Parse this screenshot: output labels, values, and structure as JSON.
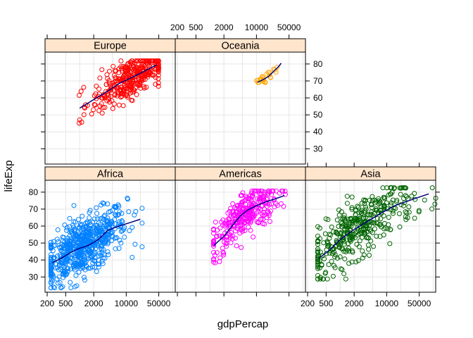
{
  "chart_data": {
    "type": "scatter",
    "title": "",
    "xlabel": "gdpPercap",
    "ylabel": "lifeExp",
    "x_scale": "log",
    "xlim": [
      180,
      113000
    ],
    "ylim": [
      21,
      87
    ],
    "x_ticks": [
      200,
      500,
      2000,
      10000,
      50000
    ],
    "x_tick_labels": [
      "200",
      "500",
      "2000",
      "10000",
      "50000"
    ],
    "y_ticks": [
      30,
      40,
      50,
      60,
      70,
      80
    ],
    "y_tick_labels": [
      "30",
      "40",
      "50",
      "60",
      "70",
      "80"
    ],
    "grid": true,
    "smoother": "loess",
    "panels": [
      {
        "name": "Africa",
        "color": "#0080ff",
        "x_range": [
          241,
          21951
        ],
        "y_range": [
          23.6,
          76.4
        ],
        "center": {
          "x": 1200,
          "y": 48
        },
        "count": 624,
        "trend": [
          [
            260,
            38.5
          ],
          [
            400,
            41
          ],
          [
            600,
            44
          ],
          [
            900,
            46.5
          ],
          [
            1500,
            48.5
          ],
          [
            2500,
            52
          ],
          [
            4000,
            57.5
          ],
          [
            7000,
            60
          ],
          [
            12000,
            62
          ],
          [
            20000,
            64
          ]
        ]
      },
      {
        "name": "Americas",
        "color": "#ff00ff",
        "x_range": [
          1202,
          42952
        ],
        "y_range": [
          37.6,
          80.7
        ],
        "center": {
          "x": 5500,
          "y": 64
        },
        "count": 300,
        "trend": [
          [
            1200,
            48.5
          ],
          [
            2000,
            54
          ],
          [
            3000,
            60
          ],
          [
            4500,
            66
          ],
          [
            6500,
            69.5
          ],
          [
            10000,
            72
          ],
          [
            15000,
            74
          ],
          [
            25000,
            76
          ],
          [
            40000,
            78
          ]
        ]
      },
      {
        "name": "Asia",
        "color": "#006400",
        "x_range": [
          331,
          113523
        ],
        "y_range": [
          28.8,
          82.6
        ],
        "center": {
          "x": 2500,
          "y": 60
        },
        "count": 396,
        "trend": [
          [
            350,
            41
          ],
          [
            600,
            46
          ],
          [
            1000,
            52
          ],
          [
            2000,
            58
          ],
          [
            4000,
            63
          ],
          [
            8000,
            68
          ],
          [
            15000,
            72
          ],
          [
            30000,
            75
          ],
          [
            80000,
            79
          ]
        ]
      },
      {
        "name": "Europe",
        "color": "#ff0000",
        "x_range": [
          974,
          49357
        ],
        "y_range": [
          43.6,
          81.8
        ],
        "center": {
          "x": 12000,
          "y": 71
        },
        "count": 360,
        "trend": [
          [
            1000,
            54
          ],
          [
            2000,
            59
          ],
          [
            4000,
            64
          ],
          [
            7000,
            68.5
          ],
          [
            12000,
            71.5
          ],
          [
            20000,
            74.5
          ],
          [
            30000,
            77
          ],
          [
            45000,
            79.5
          ]
        ]
      },
      {
        "name": "Oceania",
        "color": "#ffa500",
        "x_range": [
          10040,
          34435
        ],
        "y_range": [
          69.1,
          81.2
        ],
        "center": {
          "x": 18000,
          "y": 74
        },
        "count": 24,
        "trend": [
          [
            10500,
            69.2
          ],
          [
            14000,
            70.8
          ],
          [
            18000,
            72.5
          ],
          [
            24000,
            76
          ],
          [
            30000,
            78.5
          ],
          [
            34000,
            80.5
          ]
        ]
      }
    ]
  }
}
